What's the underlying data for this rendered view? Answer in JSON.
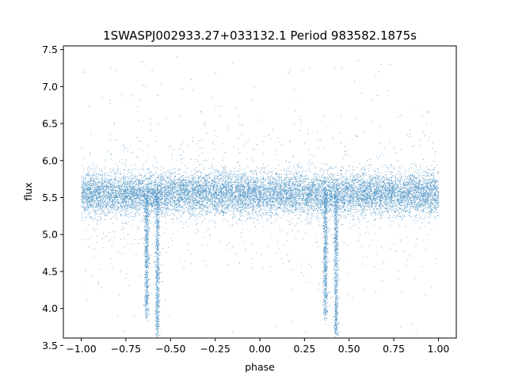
{
  "chart_data": {
    "type": "scatter",
    "title": "1SWASPJ002933.27+033132.1 Period 983582.1875s",
    "xlabel": "phase",
    "ylabel": "flux",
    "xlim": [
      -1.1,
      1.1
    ],
    "ylim": [
      3.6,
      7.55
    ],
    "xticks": [
      -1.0,
      -0.75,
      -0.5,
      -0.25,
      0.0,
      0.25,
      0.5,
      0.75,
      1.0
    ],
    "xtick_labels": [
      "−1.00",
      "−0.75",
      "−0.50",
      "−0.25",
      "0.00",
      "0.25",
      "0.50",
      "0.75",
      "1.00"
    ],
    "yticks": [
      3.5,
      4.0,
      4.5,
      5.0,
      5.5,
      6.0,
      6.5,
      7.0,
      7.5
    ],
    "ytick_labels": [
      "3.5",
      "4.0",
      "4.5",
      "5.0",
      "5.5",
      "6.0",
      "6.5",
      "7.0",
      "7.5"
    ],
    "grid": false,
    "marker_color": "#1f77b4",
    "series": [
      {
        "description_of_shape": "dense band of points across phase -1 to 1 centered near flux 5.55 (spread ~5.2-5.9), with sharp eclipse dips down to ~3.65 near phases -0.63, -0.57, 0.37 and 0.43",
        "baseline_flux": 5.55,
        "baseline_spread": 0.25,
        "x_range": [
          -1.0,
          1.0
        ],
        "dips": [
          {
            "phase": -0.635,
            "min_flux": 3.9
          },
          {
            "phase": -0.575,
            "min_flux": 3.65
          },
          {
            "phase": 0.365,
            "min_flux": 3.9
          },
          {
            "phase": 0.425,
            "min_flux": 3.65
          }
        ]
      }
    ]
  }
}
